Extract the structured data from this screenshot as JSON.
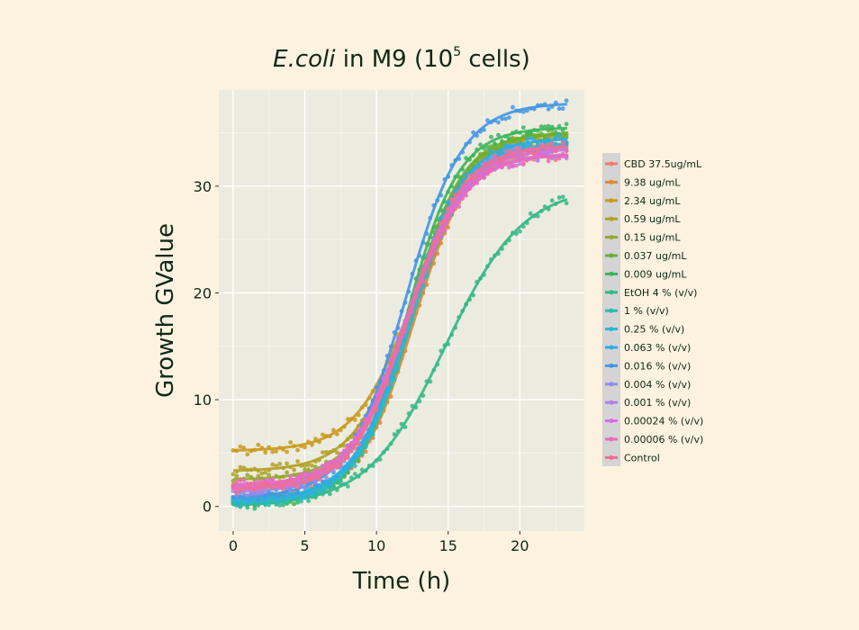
{
  "chart_data": {
    "type": "line",
    "title": {
      "italic": "E.coli",
      "rest": " in M9 (10",
      "superscript": "5",
      "end": " cells)"
    },
    "xlabel": "Time (h)",
    "ylabel": "Growth GValue",
    "xlim": [
      -1,
      24.5
    ],
    "ylim": [
      -2.3,
      39
    ],
    "xticks": [
      0,
      5,
      10,
      15,
      20
    ],
    "yticks": [
      0,
      10,
      20,
      30
    ],
    "xtick_labels": [
      "0",
      "5",
      "10",
      "15",
      "20"
    ],
    "ytick_labels": [
      "0",
      "10",
      "20",
      "30"
    ],
    "x_end": 23.3,
    "sample_step_h": 0.25,
    "grid": true,
    "legend_position": "right",
    "series": [
      {
        "name": "CBD 37.5ug/mL",
        "color": "#f07b72",
        "base": 0.7,
        "top": 33.0,
        "mid": 12.3,
        "rate": 0.55
      },
      {
        "name": "9.38 ug/mL",
        "color": "#dd8a36",
        "base": 0.6,
        "top": 34.0,
        "mid": 12.6,
        "rate": 0.52
      },
      {
        "name": "2.34 ug/mL",
        "color": "#c99a1c",
        "base": 5.2,
        "top": 34.0,
        "mid": 12.6,
        "rate": 0.5
      },
      {
        "name": "0.59 ug/mL",
        "color": "#b3a024",
        "base": 3.3,
        "top": 35.0,
        "mid": 12.5,
        "rate": 0.5
      },
      {
        "name": "0.15 ug/mL",
        "color": "#95a72c",
        "base": 2.5,
        "top": 35.0,
        "mid": 12.4,
        "rate": 0.52
      },
      {
        "name": "0.037 ug/mL",
        "color": "#66b032",
        "base": 0.4,
        "top": 35.0,
        "mid": 12.3,
        "rate": 0.55
      },
      {
        "name": "0.009 ug/mL",
        "color": "#3bb55a",
        "base": 0.2,
        "top": 35.5,
        "mid": 12.1,
        "rate": 0.55
      },
      {
        "name": "EtOH 4 % (v/v)",
        "color": "#34b886",
        "base": 0.0,
        "top": 30.0,
        "mid": 14.8,
        "rate": 0.37
      },
      {
        "name": "1 % (v/v)",
        "color": "#2cbbb0",
        "base": 0.3,
        "top": 34.0,
        "mid": 12.4,
        "rate": 0.52
      },
      {
        "name": "0.25 % (v/v)",
        "color": "#2eb7d1",
        "base": 0.5,
        "top": 34.0,
        "mid": 12.3,
        "rate": 0.52
      },
      {
        "name": "0.063 % (v/v)",
        "color": "#2fabe3",
        "base": 0.6,
        "top": 34.5,
        "mid": 12.2,
        "rate": 0.52
      },
      {
        "name": "0.016 % (v/v)",
        "color": "#4396e6",
        "base": 0.8,
        "top": 37.8,
        "mid": 12.0,
        "rate": 0.5
      },
      {
        "name": "0.004 % (v/v)",
        "color": "#8f8de8",
        "base": 1.3,
        "top": 33.8,
        "mid": 12.1,
        "rate": 0.5
      },
      {
        "name": "0.001 % (v/v)",
        "color": "#b57ee8",
        "base": 1.6,
        "top": 33.0,
        "mid": 12.0,
        "rate": 0.5
      },
      {
        "name": "0.00024 % (v/v)",
        "color": "#d56fe0",
        "base": 1.8,
        "top": 33.5,
        "mid": 12.1,
        "rate": 0.5
      },
      {
        "name": "0.00006 % (v/v)",
        "color": "#e66bbf",
        "base": 2.0,
        "top": 33.0,
        "mid": 12.2,
        "rate": 0.5
      },
      {
        "name": "Control",
        "color": "#ef6f94",
        "base": 1.6,
        "top": 33.8,
        "mid": 12.2,
        "rate": 0.52
      }
    ]
  }
}
